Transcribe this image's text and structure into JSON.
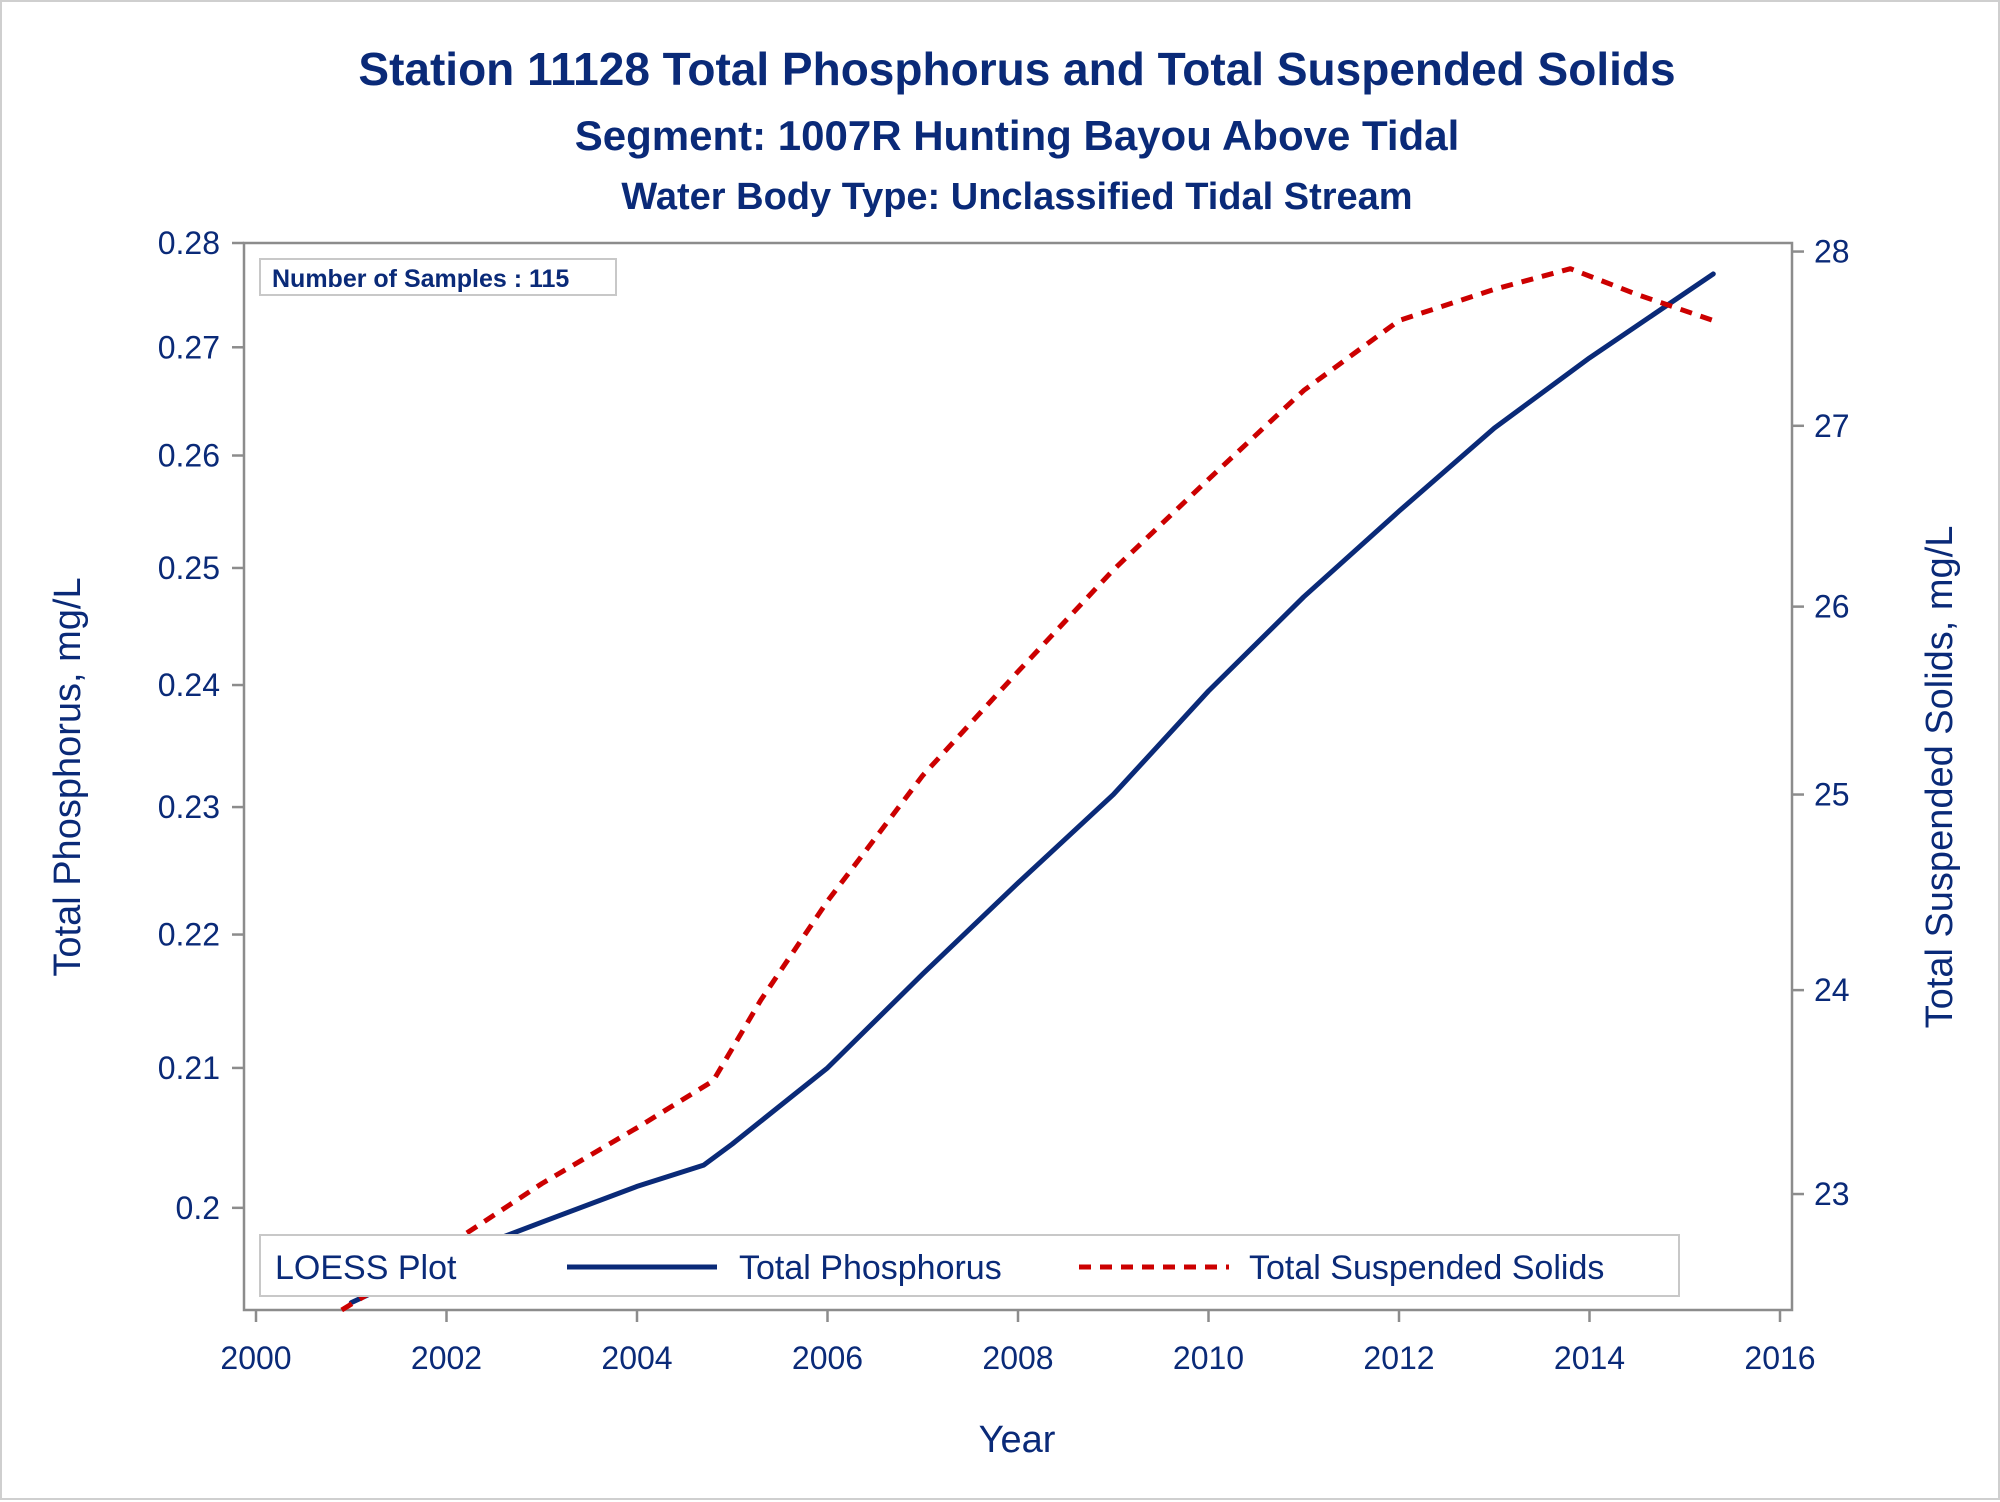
{
  "chart_data": {
    "type": "line",
    "title": "Station 11128  Total Phosphorus and Total Suspended Solids",
    "subtitle": "Segment: 1007R  Hunting Bayou Above Tidal",
    "subtitle2": "Water Body Type: Unclassified Tidal Stream",
    "xlabel": "Year",
    "ylabel_left": "Total Phosphorus, mg/L",
    "ylabel_right": "Total Suspended Solids, mg/L",
    "annotation": "Number of Samples : 115",
    "legend_title": "LOESS Plot",
    "legend_position": "bottom-inside",
    "grid": false,
    "xlim": [
      2000,
      2016
    ],
    "x_ticks": [
      "2000",
      "2002",
      "2004",
      "2006",
      "2008",
      "2010",
      "2012",
      "2014",
      "2016"
    ],
    "ylim_left": [
      0.193,
      0.28
    ],
    "y_left_ticks": [
      "0.2",
      "0.21",
      "0.22",
      "0.23",
      "0.24",
      "0.25",
      "0.26",
      "0.27",
      "0.28"
    ],
    "ylim_right": [
      22.45,
      28.05
    ],
    "y_right_ticks": [
      "23",
      "24",
      "25",
      "26",
      "27",
      "28"
    ],
    "y_left_scale": "log",
    "y_right_scale": "log",
    "series": [
      {
        "name": "Total Phosphorus",
        "axis": "left",
        "color": "#0a2a78",
        "style": "solid",
        "x": [
          2001.0,
          2002.0,
          2003.0,
          2004.0,
          2004.7,
          2005.0,
          2006.0,
          2007.0,
          2008.0,
          2009.0,
          2010.0,
          2011.0,
          2012.0,
          2013.0,
          2014.0,
          2015.3
        ],
        "y": [
          0.1935,
          0.1965,
          0.199,
          0.2015,
          0.203,
          0.2045,
          0.21,
          0.217,
          0.224,
          0.231,
          0.2395,
          0.2475,
          0.255,
          0.2625,
          0.269,
          0.277
        ]
      },
      {
        "name": "Total Suspended Solids",
        "axis": "right",
        "color": "#cc0000",
        "style": "dashed",
        "x": [
          2000.9,
          2002.0,
          2003.0,
          2004.0,
          2004.8,
          2005.3,
          2006.0,
          2007.0,
          2008.0,
          2009.0,
          2010.0,
          2011.0,
          2012.0,
          2013.0,
          2013.8,
          2014.5,
          2015.3
        ],
        "y": [
          22.45,
          22.75,
          23.05,
          23.32,
          23.55,
          23.95,
          24.45,
          25.1,
          25.65,
          26.2,
          26.7,
          27.2,
          27.6,
          27.78,
          27.9,
          27.75,
          27.6
        ]
      }
    ]
  }
}
